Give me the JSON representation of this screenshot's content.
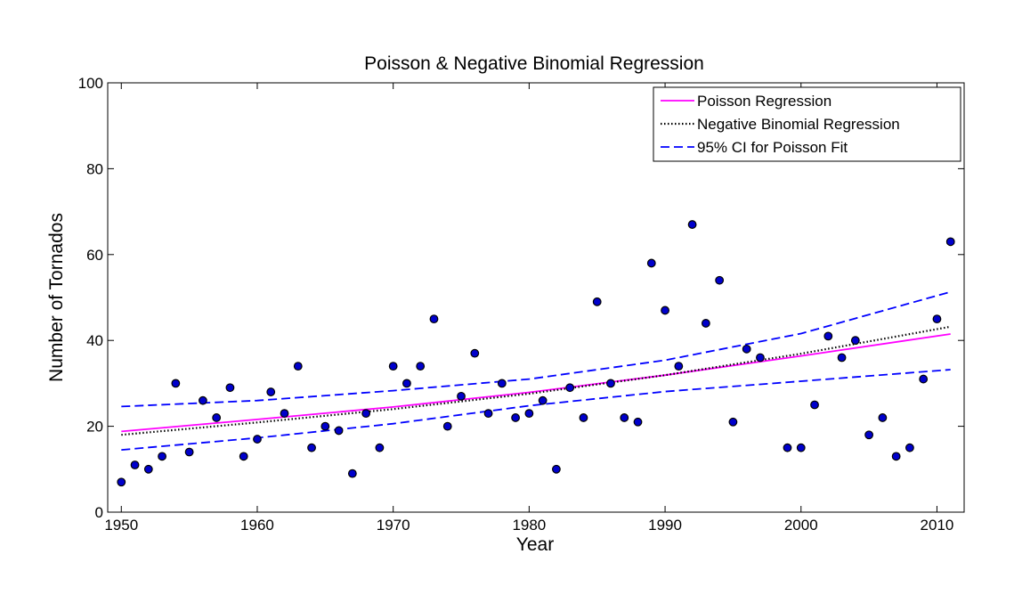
{
  "chart_data": {
    "type": "scatter",
    "title": "Poisson & Negative Binomial Regression",
    "xlabel": "Year",
    "ylabel": "Number of Tornados",
    "xlim": [
      1949,
      2012
    ],
    "ylim": [
      0,
      100
    ],
    "xticks": [
      1950,
      1960,
      1970,
      1980,
      1990,
      2000,
      2010
    ],
    "yticks": [
      0,
      20,
      40,
      60,
      80,
      100
    ],
    "grid": false,
    "legend_position": "top-right",
    "points": {
      "x": [
        1950,
        1951,
        1952,
        1953,
        1954,
        1955,
        1956,
        1957,
        1958,
        1959,
        1960,
        1961,
        1962,
        1963,
        1964,
        1965,
        1966,
        1967,
        1968,
        1969,
        1970,
        1971,
        1972,
        1973,
        1974,
        1975,
        1976,
        1977,
        1978,
        1979,
        1980,
        1981,
        1982,
        1983,
        1984,
        1985,
        1986,
        1987,
        1988,
        1989,
        1990,
        1991,
        1992,
        1993,
        1994,
        1995,
        1996,
        1997,
        1999,
        2000,
        2001,
        2002,
        2003,
        2004,
        2005,
        2006,
        2007,
        2008,
        2009,
        2010,
        2011
      ],
      "y": [
        7,
        11,
        10,
        13,
        30,
        14,
        26,
        22,
        29,
        13,
        17,
        28,
        23,
        34,
        15,
        20,
        19,
        9,
        23,
        15,
        34,
        30,
        34,
        45,
        20,
        27,
        37,
        23,
        30,
        22,
        23,
        26,
        10,
        29,
        22,
        49,
        30,
        22,
        21,
        58,
        47,
        34,
        67,
        44,
        54,
        21,
        38,
        36,
        15,
        15,
        25,
        41,
        36,
        40,
        18,
        22,
        13,
        15,
        31,
        45,
        63
      ],
      "color": "#0000cc"
    },
    "series": [
      {
        "name": "Poisson Regression",
        "style": "solid",
        "color": "#ff00ff",
        "x": [
          1950,
          1960,
          1970,
          1980,
          1990,
          2000,
          2011
        ],
        "y": [
          18.8,
          21.6,
          24.5,
          27.9,
          31.9,
          36.4,
          41.5
        ]
      },
      {
        "name": "Negative Binomial Regression",
        "style": "dotted",
        "color": "#000000",
        "x": [
          1950,
          1960,
          1970,
          1980,
          1990,
          2000,
          2011
        ],
        "y": [
          18.0,
          20.9,
          24.0,
          27.6,
          31.9,
          36.9,
          43.2
        ]
      },
      {
        "name": "95% CI for Poisson Fit",
        "style": "dashed",
        "color": "#0000ff",
        "x": [
          1950,
          1960,
          1970,
          1980,
          1990,
          2000,
          2011
        ],
        "y": [
          24.6,
          26.0,
          28.3,
          31.0,
          35.4,
          41.6,
          51.3
        ]
      },
      {
        "name": "",
        "style": "dashed",
        "color": "#0000ff",
        "x": [
          1950,
          1960,
          1970,
          1980,
          1990,
          2000,
          2011
        ],
        "y": [
          14.5,
          17.3,
          20.6,
          24.8,
          28.1,
          30.5,
          33.2
        ]
      }
    ]
  }
}
